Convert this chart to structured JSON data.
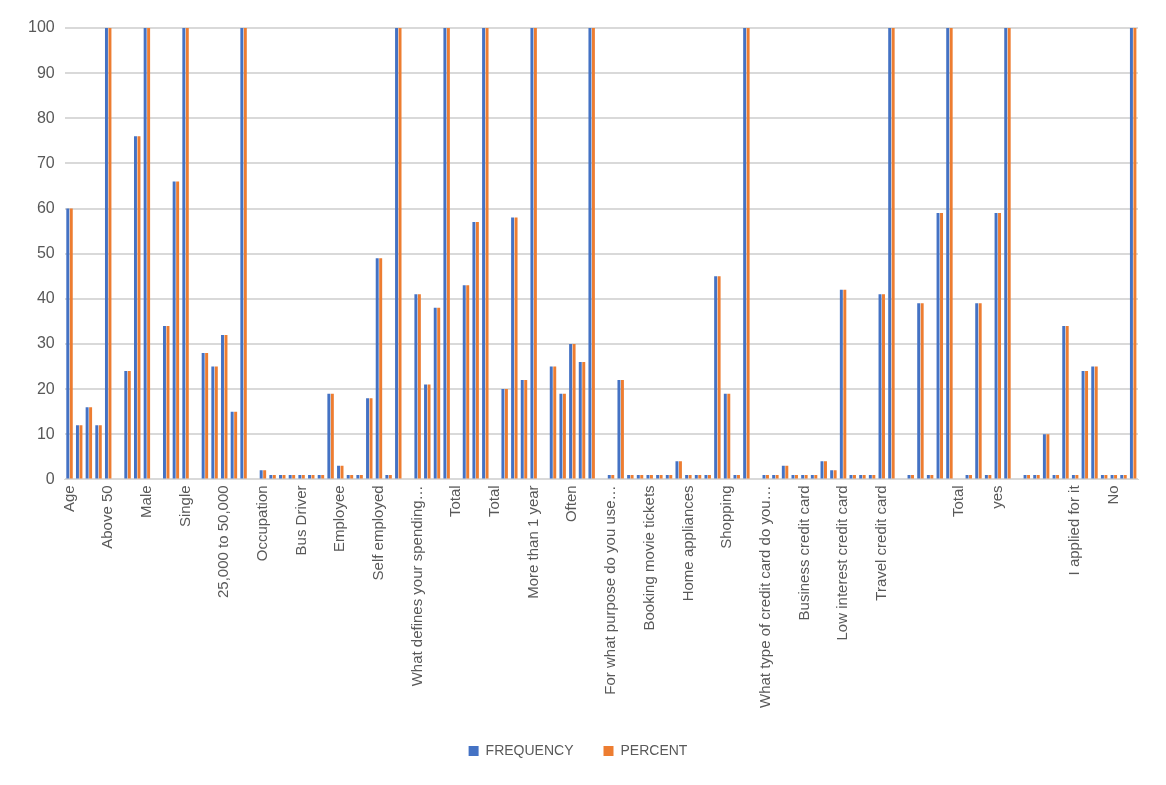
{
  "chart_data": {
    "type": "bar",
    "categories": [
      "Age",
      null,
      null,
      null,
      "Above 50",
      null,
      null,
      null,
      "Male",
      null,
      null,
      null,
      "Single",
      null,
      null,
      null,
      "25,000 to 50,000",
      null,
      null,
      null,
      "Occupation",
      null,
      null,
      null,
      "Bus Driver",
      null,
      null,
      null,
      "Employee",
      null,
      null,
      null,
      "Self employed",
      null,
      null,
      null,
      "What defines your spending…",
      null,
      null,
      null,
      "Total",
      null,
      null,
      null,
      "Total",
      null,
      null,
      null,
      "More than 1 year",
      null,
      null,
      null,
      "Often",
      null,
      null,
      null,
      "For what purpose do you use…",
      null,
      null,
      null,
      "Booking movie tickets",
      null,
      null,
      null,
      "Home appliances",
      null,
      null,
      null,
      "Shopping",
      null,
      null,
      null,
      "What type of credit card do you…",
      null,
      null,
      null,
      "Business credit card",
      null,
      null,
      null,
      "Low interest credit card",
      null,
      null,
      null,
      "Travel credit card",
      null,
      null,
      null,
      null,
      null,
      null,
      null,
      "Total",
      null,
      null,
      null,
      "yes",
      null,
      null,
      null,
      null,
      null,
      null,
      null,
      "I applied for it",
      null,
      null,
      null,
      "No",
      null,
      null
    ],
    "series": [
      {
        "name": "FREQUENCY",
        "color": "#4472c4",
        "values": [
          60,
          12,
          16,
          12,
          100,
          null,
          24,
          76,
          100,
          null,
          34,
          66,
          100,
          null,
          28,
          25,
          32,
          15,
          100,
          null,
          2,
          1,
          1,
          1,
          1,
          1,
          1,
          19,
          3,
          1,
          1,
          18,
          49,
          1,
          100,
          null,
          41,
          21,
          38,
          100,
          null,
          43,
          57,
          100,
          null,
          20,
          58,
          22,
          100,
          null,
          25,
          19,
          30,
          26,
          100,
          null,
          1,
          22,
          1,
          1,
          1,
          1,
          1,
          4,
          1,
          1,
          1,
          45,
          19,
          1,
          100,
          null,
          1,
          1,
          3,
          1,
          1,
          1,
          4,
          2,
          42,
          1,
          1,
          1,
          41,
          100,
          null,
          1,
          39,
          1,
          59,
          100,
          null,
          1,
          39,
          1,
          59,
          100,
          null,
          1,
          1,
          10,
          1,
          34,
          1,
          24,
          25,
          1,
          1,
          1,
          100
        ]
      },
      {
        "name": "PERCENT",
        "color": "#ed7d31",
        "values": [
          60,
          12,
          16,
          12,
          100,
          null,
          24,
          76,
          100,
          null,
          34,
          66,
          100,
          null,
          28,
          25,
          32,
          15,
          100,
          null,
          2,
          1,
          1,
          1,
          1,
          1,
          1,
          19,
          3,
          1,
          1,
          18,
          49,
          1,
          100,
          null,
          41,
          21,
          38,
          100,
          null,
          43,
          57,
          100,
          null,
          20,
          58,
          22,
          100,
          null,
          25,
          19,
          30,
          26,
          100,
          null,
          1,
          22,
          1,
          1,
          1,
          1,
          1,
          4,
          1,
          1,
          1,
          45,
          19,
          1,
          100,
          null,
          1,
          1,
          3,
          1,
          1,
          1,
          4,
          2,
          42,
          1,
          1,
          1,
          41,
          100,
          null,
          1,
          39,
          1,
          59,
          100,
          null,
          1,
          39,
          1,
          59,
          100,
          null,
          1,
          1,
          10,
          1,
          34,
          1,
          24,
          25,
          1,
          1,
          1,
          100
        ]
      }
    ],
    "ylim": [
      0,
      100
    ],
    "yticks": [
      0,
      10,
      20,
      30,
      40,
      50,
      60,
      70,
      80,
      90,
      100
    ],
    "grid": "y",
    "legend": "bottom"
  }
}
